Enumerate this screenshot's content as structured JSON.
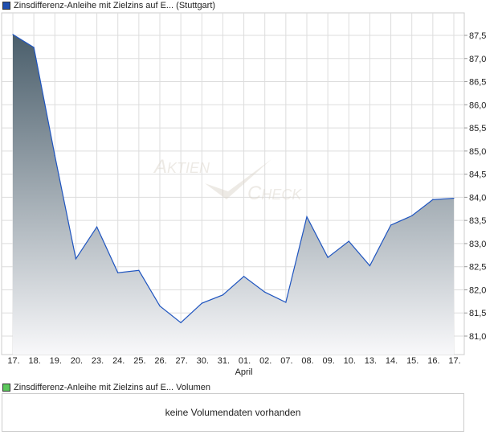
{
  "chart_data": {
    "type": "area",
    "title": "Zinsdifferenz-Anleihe mit Zielzins auf E... (Stuttgart)",
    "categories": [
      "17.",
      "18.",
      "19.",
      "20.",
      "23.",
      "24.",
      "25.",
      "26.",
      "27.",
      "30.",
      "31.",
      "01.",
      "02.",
      "07.",
      "08.",
      "09.",
      "10.",
      "13.",
      "14.",
      "15.",
      "16.",
      "17."
    ],
    "x_sublabel": "April",
    "values": [
      87.52,
      87.24,
      84.9,
      82.67,
      83.36,
      82.37,
      82.42,
      81.65,
      81.29,
      81.71,
      81.89,
      82.29,
      81.95,
      81.73,
      83.58,
      82.7,
      83.05,
      82.52,
      83.4,
      83.6,
      83.95,
      83.98
    ],
    "yticks": [
      "81,0",
      "81,5",
      "82,0",
      "82,5",
      "83,0",
      "83,5",
      "84,0",
      "84,5",
      "85,0",
      "85,5",
      "86,0",
      "86,5",
      "87,0",
      "87,5"
    ],
    "ylim": [
      80.6,
      88.2
    ],
    "grid": true,
    "line_color": "#1f55c0",
    "fill_top": "#4a5e6b",
    "fill_bottom": "#f8f8fa",
    "legend_color": "#1f4fb0",
    "watermark": "AKTIEN CHECK"
  },
  "volume": {
    "title": "Zinsdifferenz-Anleihe mit Zielzins auf E... Volumen",
    "legend_color": "#5cc85c",
    "empty_message": "keine Volumendaten vorhanden"
  }
}
